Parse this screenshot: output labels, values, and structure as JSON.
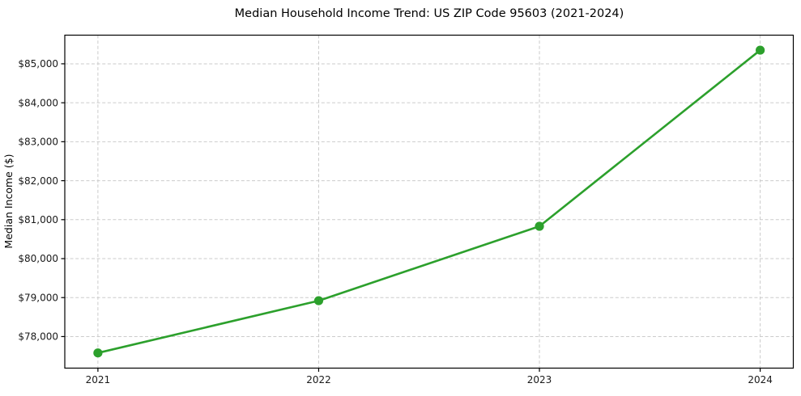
{
  "chart_data": {
    "type": "line",
    "title": "Median Household Income Trend: US ZIP Code 95603 (2021-2024)",
    "xlabel": "",
    "ylabel": "Median Income ($)",
    "series": [
      {
        "name": "Median Household Income",
        "x": [
          2021,
          2022,
          2023,
          2024
        ],
        "values": [
          77580,
          78920,
          80830,
          85350
        ]
      }
    ],
    "x": [
      2021,
      2022,
      2023,
      2024
    ],
    "values": [
      77580,
      78920,
      80830,
      85350
    ],
    "xtick_labels": [
      "2021",
      "2022",
      "2023",
      "2024"
    ],
    "yticks": [
      78000,
      79000,
      80000,
      81000,
      82000,
      83000,
      84000,
      85000
    ],
    "ytick_labels": [
      "$78,000",
      "$79,000",
      "$80,000",
      "$81,000",
      "$82,000",
      "$83,000",
      "$84,000",
      "$85,000"
    ],
    "xlim": [
      2020.85,
      2024.15
    ],
    "ylim": [
      77190,
      85735
    ],
    "grid": true,
    "grid_style": "dashed",
    "legend": "none",
    "line_color": "#2ca02c",
    "marker": "circle",
    "grid_color": "#cbcbcb",
    "frame_color": "#000000",
    "tick_text_color": "#1a1a1a",
    "title_color": "#000000",
    "background_color": "#ffffff"
  }
}
